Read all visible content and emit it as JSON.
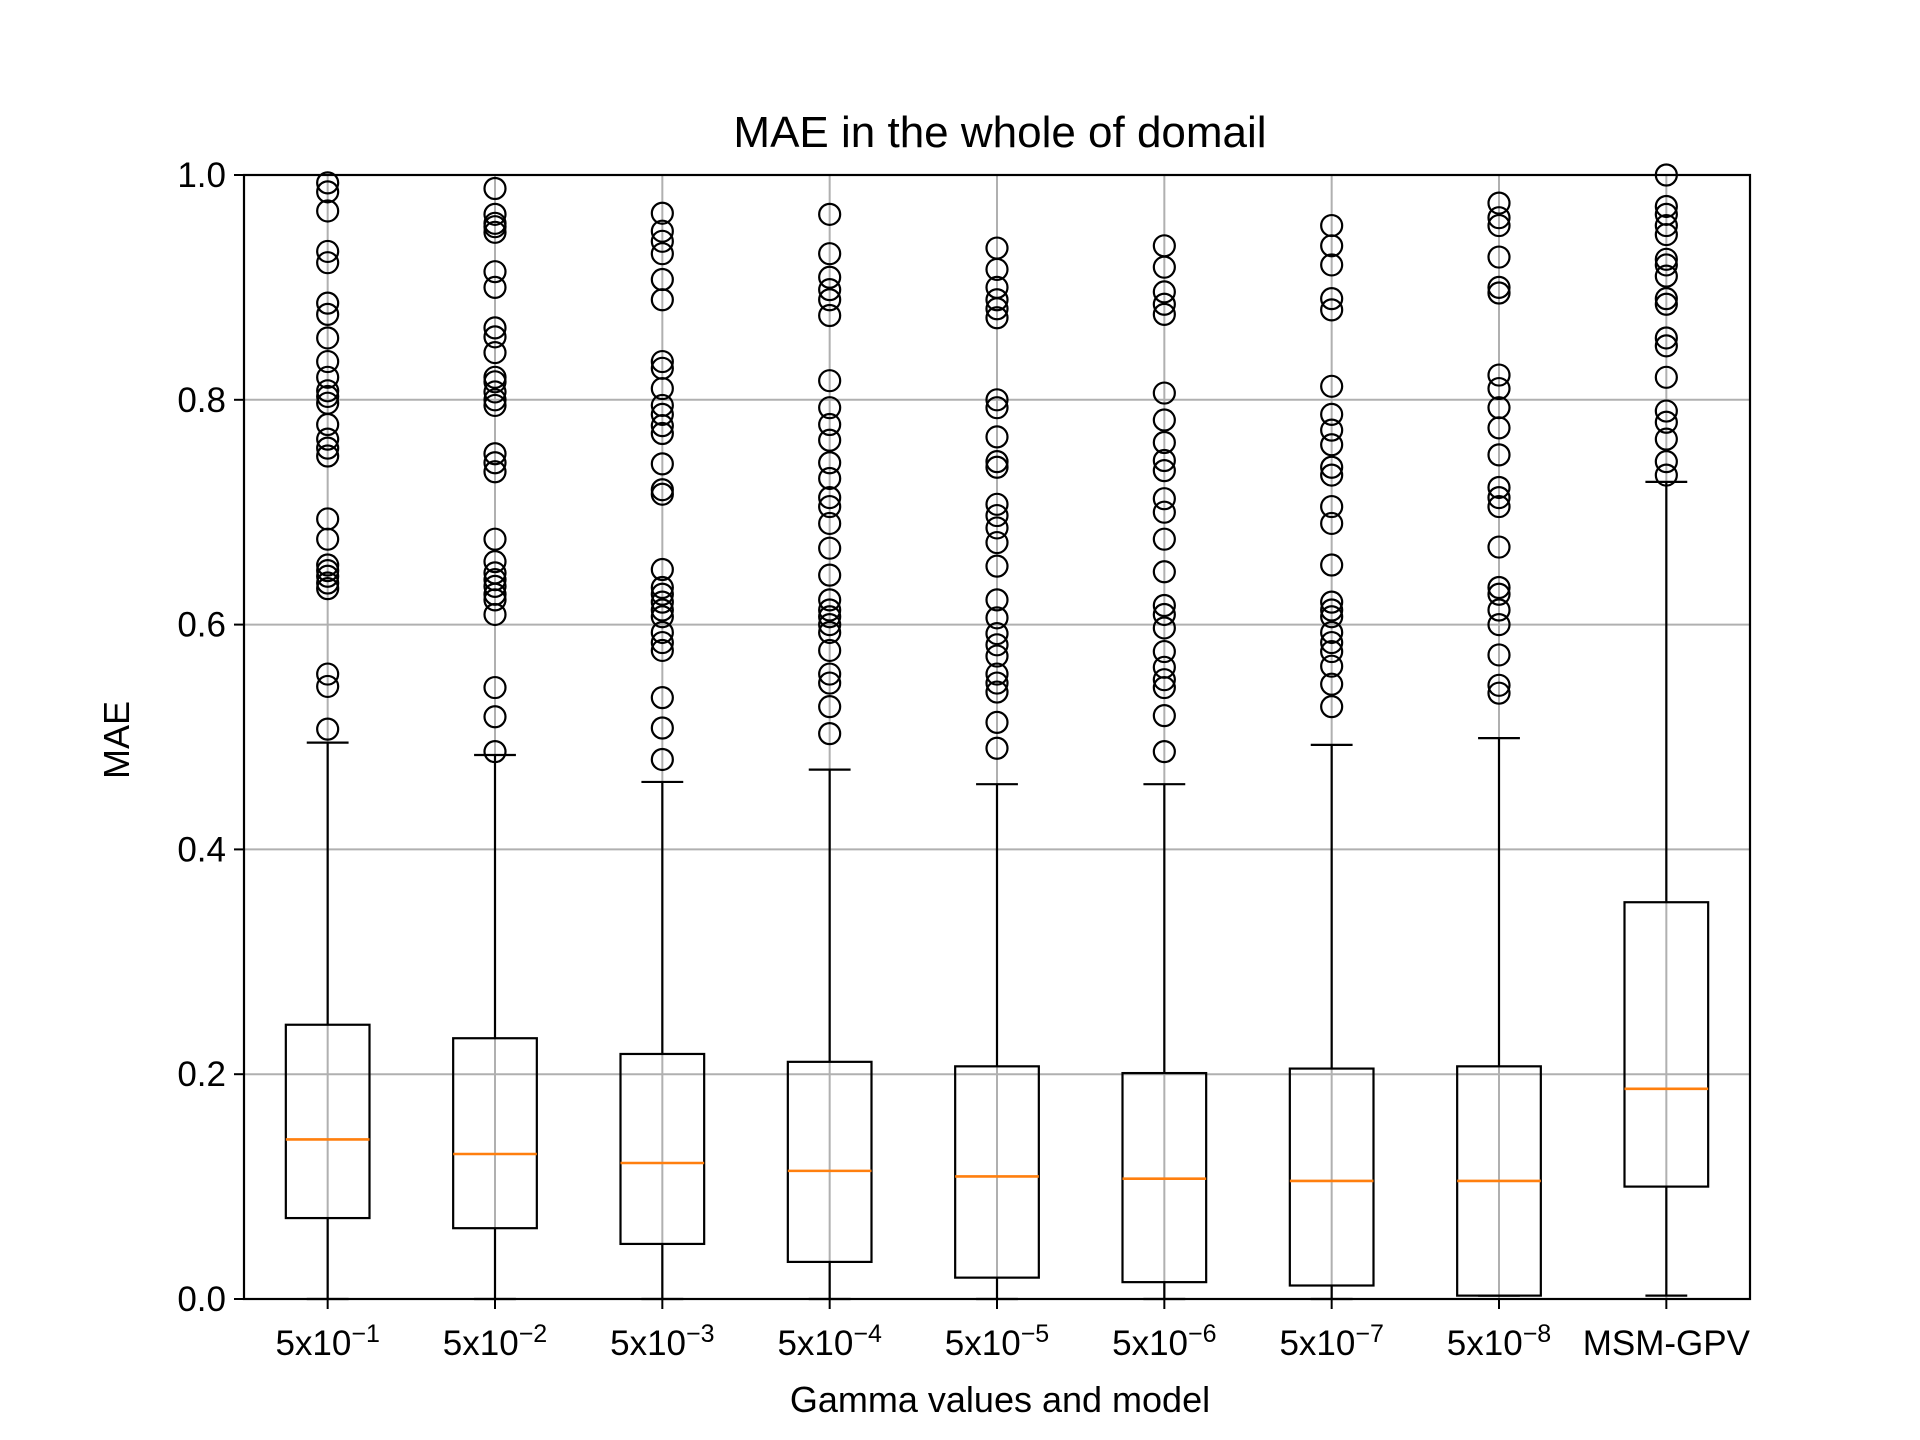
{
  "chart_data": {
    "type": "box",
    "title": "MAE in the whole of domail",
    "xlabel": "Gamma values and model",
    "ylabel": "MAE",
    "ylim": [
      0.0,
      1.0
    ],
    "yticks": [
      "0.0",
      "0.2",
      "0.4",
      "0.6",
      "0.8",
      "1.0"
    ],
    "grid": true,
    "categories": [
      {
        "base": "5x10",
        "exp": "−1"
      },
      {
        "base": "5x10",
        "exp": "−2"
      },
      {
        "base": "5x10",
        "exp": "−3"
      },
      {
        "base": "5x10",
        "exp": "−4"
      },
      {
        "base": "5x10",
        "exp": "−5"
      },
      {
        "base": "5x10",
        "exp": "−6"
      },
      {
        "base": "5x10",
        "exp": "−7"
      },
      {
        "base": "5x10",
        "exp": "−8"
      },
      {
        "base": "MSM-GPV",
        "exp": ""
      }
    ],
    "boxes": [
      {
        "whislo": 0.0,
        "q1": 0.072,
        "median": 0.142,
        "q3": 0.244,
        "whishi": 0.495,
        "fliers": [
          0.507,
          0.545,
          0.556,
          0.632,
          0.637,
          0.643,
          0.648,
          0.653,
          0.676,
          0.694,
          0.75,
          0.757,
          0.765,
          0.778,
          0.797,
          0.803,
          0.808,
          0.82,
          0.834,
          0.855,
          0.876,
          0.886,
          0.922,
          0.932,
          0.968,
          0.985,
          0.993
        ]
      },
      {
        "whislo": 0.0,
        "q1": 0.063,
        "median": 0.129,
        "q3": 0.232,
        "whishi": 0.484,
        "fliers": [
          0.487,
          0.518,
          0.544,
          0.609,
          0.622,
          0.627,
          0.634,
          0.64,
          0.646,
          0.656,
          0.676,
          0.736,
          0.744,
          0.752,
          0.795,
          0.8,
          0.807,
          0.816,
          0.82,
          0.842,
          0.856,
          0.864,
          0.9,
          0.914,
          0.949,
          0.954,
          0.957,
          0.965,
          0.988
        ]
      },
      {
        "whislo": 0.0,
        "q1": 0.049,
        "median": 0.121,
        "q3": 0.218,
        "whishi": 0.46,
        "fliers": [
          0.48,
          0.508,
          0.535,
          0.577,
          0.584,
          0.593,
          0.607,
          0.613,
          0.62,
          0.627,
          0.633,
          0.649,
          0.716,
          0.72,
          0.743,
          0.77,
          0.777,
          0.787,
          0.795,
          0.81,
          0.828,
          0.834,
          0.889,
          0.907,
          0.93,
          0.941,
          0.95,
          0.966
        ]
      },
      {
        "whislo": 0.0,
        "q1": 0.033,
        "median": 0.114,
        "q3": 0.211,
        "whishi": 0.471,
        "fliers": [
          0.503,
          0.527,
          0.548,
          0.556,
          0.577,
          0.593,
          0.6,
          0.607,
          0.613,
          0.622,
          0.644,
          0.668,
          0.69,
          0.705,
          0.713,
          0.73,
          0.744,
          0.764,
          0.778,
          0.793,
          0.817,
          0.875,
          0.889,
          0.898,
          0.909,
          0.93,
          0.965
        ]
      },
      {
        "whislo": 0.0,
        "q1": 0.019,
        "median": 0.109,
        "q3": 0.207,
        "whishi": 0.458,
        "fliers": [
          0.49,
          0.513,
          0.54,
          0.548,
          0.556,
          0.572,
          0.582,
          0.592,
          0.606,
          0.622,
          0.652,
          0.673,
          0.686,
          0.697,
          0.707,
          0.74,
          0.745,
          0.767,
          0.793,
          0.8,
          0.873,
          0.881,
          0.889,
          0.9,
          0.916,
          0.935
        ]
      },
      {
        "whislo": 0.0,
        "q1": 0.015,
        "median": 0.107,
        "q3": 0.201,
        "whishi": 0.458,
        "fliers": [
          0.487,
          0.519,
          0.544,
          0.551,
          0.562,
          0.576,
          0.597,
          0.609,
          0.617,
          0.647,
          0.676,
          0.7,
          0.712,
          0.737,
          0.746,
          0.762,
          0.782,
          0.806,
          0.876,
          0.885,
          0.896,
          0.918,
          0.937
        ]
      },
      {
        "whislo": 0.0,
        "q1": 0.012,
        "median": 0.105,
        "q3": 0.205,
        "whishi": 0.493,
        "fliers": [
          0.527,
          0.547,
          0.563,
          0.576,
          0.584,
          0.593,
          0.607,
          0.613,
          0.62,
          0.653,
          0.69,
          0.705,
          0.733,
          0.74,
          0.76,
          0.773,
          0.787,
          0.812,
          0.88,
          0.89,
          0.92,
          0.937,
          0.955
        ]
      },
      {
        "whislo": 0.003,
        "q1": 0.003,
        "median": 0.105,
        "q3": 0.207,
        "whishi": 0.499,
        "fliers": [
          0.539,
          0.546,
          0.573,
          0.6,
          0.613,
          0.627,
          0.633,
          0.669,
          0.705,
          0.713,
          0.722,
          0.751,
          0.775,
          0.793,
          0.81,
          0.822,
          0.895,
          0.9,
          0.927,
          0.955,
          0.962,
          0.975
        ]
      },
      {
        "whislo": 0.003,
        "q1": 0.1,
        "median": 0.187,
        "q3": 0.353,
        "whishi": 0.727,
        "fliers": [
          0.733,
          0.745,
          0.765,
          0.78,
          0.79,
          0.82,
          0.848,
          0.855,
          0.885,
          0.89,
          0.91,
          0.92,
          0.925,
          0.947,
          0.955,
          0.965,
          0.972,
          1.0
        ]
      }
    ],
    "colors": {
      "box": "#000000",
      "median": "#ff7f0e",
      "grid": "#b0b0b0"
    }
  }
}
